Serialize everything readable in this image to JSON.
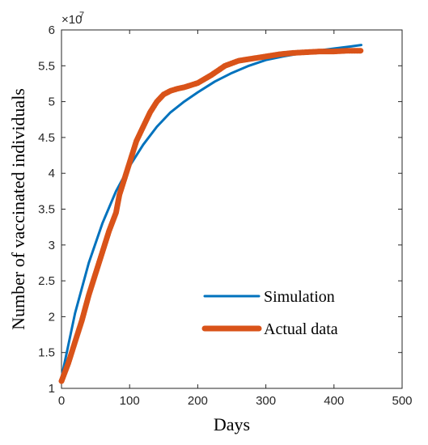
{
  "chart_data": {
    "type": "line",
    "xlabel": "Days",
    "ylabel": "Number of vaccinated individuals",
    "y_multiplier_label": "×10",
    "y_multiplier_exponent": "7",
    "xlim": [
      0,
      500
    ],
    "ylim": [
      1,
      6
    ],
    "x_ticks": [
      0,
      100,
      200,
      300,
      400,
      500
    ],
    "x_tick_labels": [
      "0",
      "100",
      "200",
      "300",
      "400",
      "500"
    ],
    "y_ticks": [
      1,
      1.5,
      2,
      2.5,
      3,
      3.5,
      4,
      4.5,
      5,
      5.5,
      6
    ],
    "y_tick_labels": [
      "1",
      "1.5",
      "2",
      "2.5",
      "3",
      "3.5",
      "4",
      "4.5",
      "5",
      "5.5",
      "6"
    ],
    "grid": false,
    "legend_position": "bottom-right",
    "series": [
      {
        "name": "Simulation",
        "color": "#0072BD",
        "style": "line",
        "x": [
          0,
          10,
          20,
          40,
          60,
          80,
          100,
          120,
          140,
          160,
          180,
          200,
          225,
          250,
          275,
          300,
          325,
          350,
          375,
          400,
          425,
          440
        ],
        "y": [
          1.15,
          1.6,
          2.05,
          2.75,
          3.3,
          3.75,
          4.1,
          4.4,
          4.65,
          4.85,
          5.0,
          5.13,
          5.28,
          5.4,
          5.5,
          5.58,
          5.63,
          5.67,
          5.71,
          5.74,
          5.77,
          5.79
        ]
      },
      {
        "name": "Actual data",
        "color": "#D95319",
        "style": "thick-dotted",
        "x": [
          0,
          10,
          20,
          30,
          40,
          50,
          60,
          70,
          80,
          85,
          90,
          100,
          110,
          120,
          130,
          140,
          150,
          160,
          170,
          180,
          200,
          220,
          240,
          260,
          280,
          300,
          320,
          340,
          360,
          380,
          400,
          420,
          440
        ],
        "y": [
          1.1,
          1.35,
          1.65,
          1.95,
          2.3,
          2.6,
          2.9,
          3.2,
          3.45,
          3.7,
          3.85,
          4.15,
          4.45,
          4.65,
          4.85,
          5.0,
          5.1,
          5.15,
          5.18,
          5.2,
          5.26,
          5.37,
          5.5,
          5.57,
          5.6,
          5.63,
          5.66,
          5.68,
          5.69,
          5.7,
          5.7,
          5.71,
          5.71
        ]
      }
    ]
  }
}
